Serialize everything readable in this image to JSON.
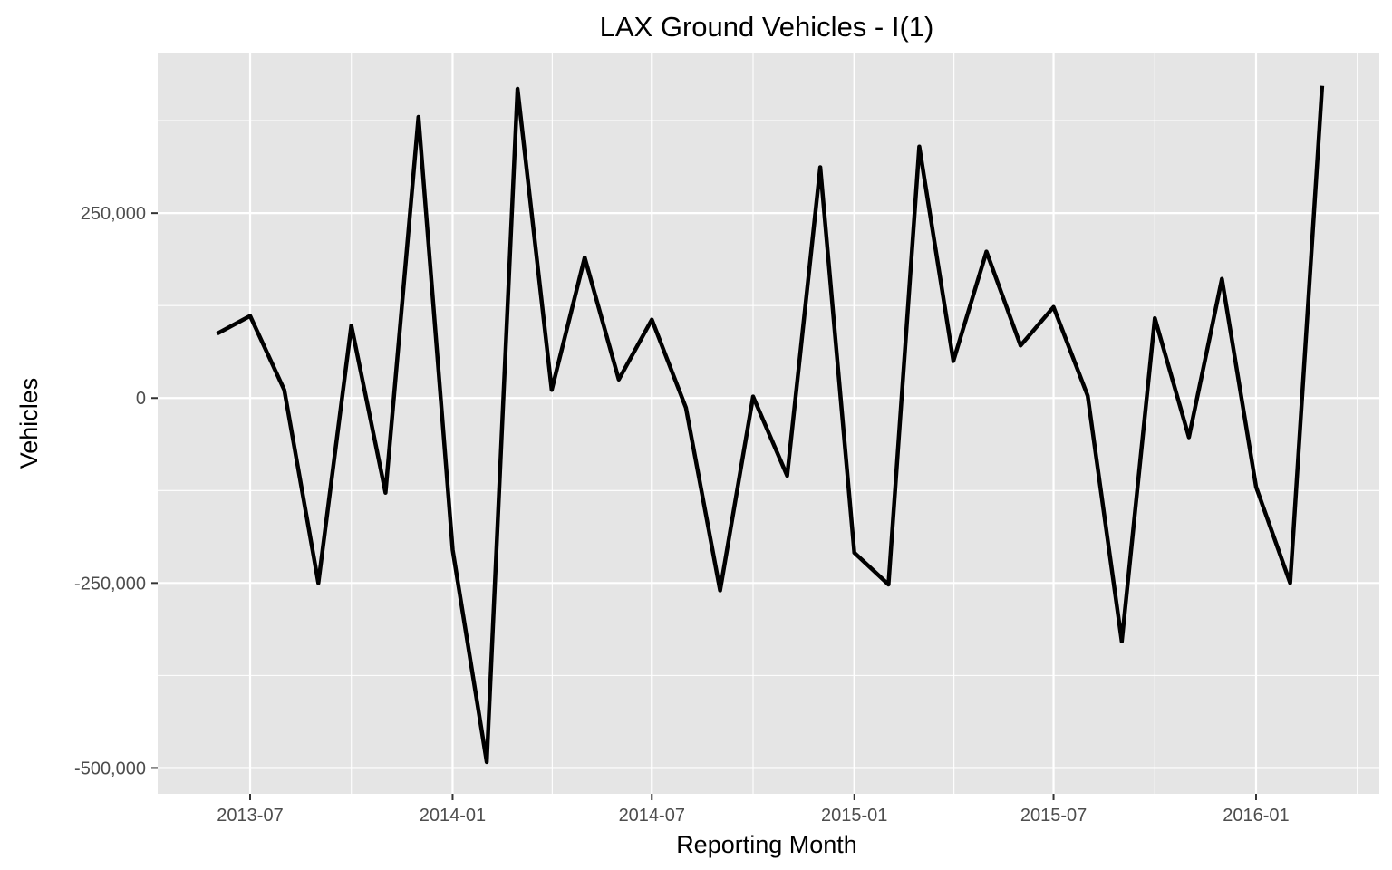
{
  "chart_data": {
    "type": "line",
    "title": "LAX Ground Vehicles - I(1)",
    "xlabel": "Reporting Month",
    "ylabel": "Vehicles",
    "x_ticks": [
      "2013-07",
      "2014-01",
      "2014-07",
      "2015-01",
      "2015-07",
      "2016-01"
    ],
    "x_tick_dates": [
      "2013-07-01",
      "2014-01-01",
      "2014-07-01",
      "2015-01-01",
      "2015-07-01",
      "2016-01-01"
    ],
    "y_ticks": [
      250000,
      0,
      -250000,
      -500000
    ],
    "y_tick_labels": [
      "250,000",
      "0",
      "-250,000",
      "-500,000"
    ],
    "xlim": [
      "2013-04-08",
      "2016-04-22"
    ],
    "ylim": [
      -535000,
      467000
    ],
    "grid": true,
    "colors": {
      "panel": "#e5e5e5",
      "grid": "#ffffff",
      "line": "#000000",
      "tick_text": "#4d4d4d"
    },
    "series": [
      {
        "x": [
          "2013-06-01",
          "2013-07-01",
          "2013-08-01",
          "2013-09-01",
          "2013-10-01",
          "2013-11-01",
          "2013-12-01",
          "2014-01-01",
          "2014-02-01",
          "2014-03-01",
          "2014-04-01",
          "2014-05-01",
          "2014-06-01",
          "2014-07-01",
          "2014-08-01",
          "2014-09-01",
          "2014-10-01",
          "2014-11-01",
          "2014-12-01",
          "2015-01-01",
          "2015-02-01",
          "2015-03-01",
          "2015-04-01",
          "2015-05-01",
          "2015-06-01",
          "2015-07-01",
          "2015-08-01",
          "2015-09-01",
          "2015-10-01",
          "2015-11-01",
          "2015-12-01",
          "2016-01-01",
          "2016-02-01",
          "2016-03-01"
        ],
        "values": [
          87000,
          111000,
          11000,
          -250000,
          98000,
          -128000,
          380000,
          -205000,
          -492000,
          418000,
          11000,
          190000,
          25000,
          106000,
          -13000,
          -260000,
          2000,
          -105000,
          312000,
          -209000,
          -252000,
          340000,
          50000,
          198000,
          71000,
          123000,
          3000,
          -329000,
          108000,
          -53000,
          161000,
          -120000,
          -250000,
          422000
        ]
      }
    ]
  }
}
